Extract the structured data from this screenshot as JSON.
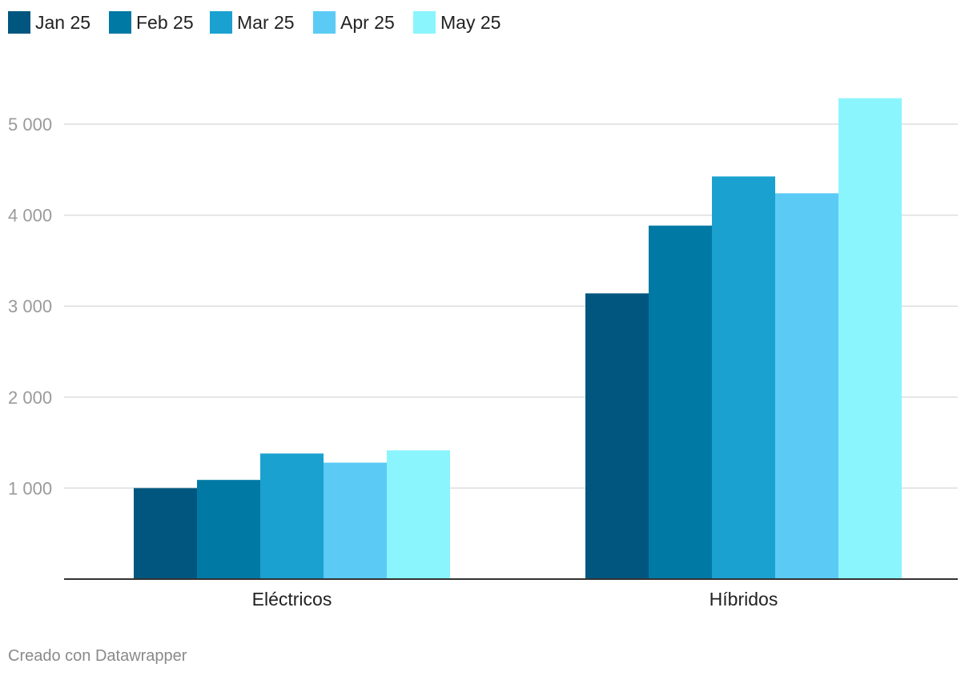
{
  "chart_data": {
    "type": "bar",
    "categories": [
      "Eléctricos",
      "Híbridos"
    ],
    "series": [
      {
        "name": "Jan 25",
        "color": "#00567f",
        "values": [
          1000,
          3140
        ]
      },
      {
        "name": "Feb 25",
        "color": "#0079a5",
        "values": [
          1090,
          3885
        ]
      },
      {
        "name": "Mar 25",
        "color": "#1aa1cf",
        "values": [
          1380,
          4425
        ]
      },
      {
        "name": "Apr 25",
        "color": "#5bcbf6",
        "values": [
          1280,
          4240
        ]
      },
      {
        "name": "May 25",
        "color": "#8bf5fe",
        "values": [
          1415,
          5285
        ]
      }
    ],
    "yticks": [
      1000,
      2000,
      3000,
      4000,
      5000
    ],
    "ytick_labels": [
      "1 000",
      "2 000",
      "3 000",
      "4 000",
      "5 000"
    ],
    "ylim": [
      0,
      5600
    ],
    "grid": true,
    "legend_position": "top-left",
    "credit": "Creado con Datawrapper"
  }
}
